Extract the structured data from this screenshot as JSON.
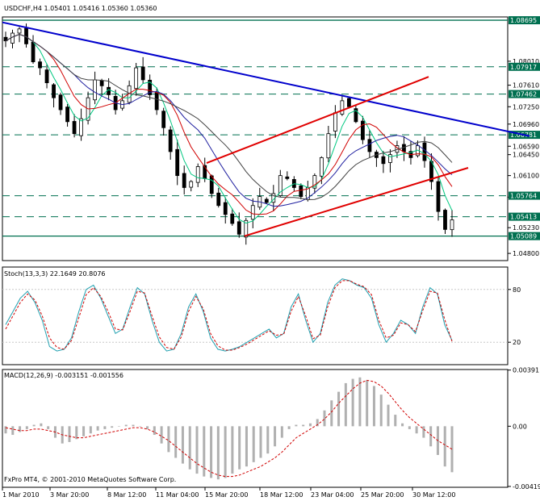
{
  "colors": {
    "background": "#ffffff",
    "frame": "#000000",
    "grid": "#c8c8c8",
    "candle": "#000000",
    "hline": "#007050",
    "trend_blue": "#0000cc",
    "channel_red": "#e00000",
    "ma_fast": "#00c880",
    "ma_mid": "#d00000",
    "ma_slow": "#2020a0",
    "ma_long": "#404040",
    "stoch_main": "#20a0b0",
    "stoch_signal": "#d00000",
    "macd_hist": "#b0b0b0",
    "macd_signal": "#d00000",
    "price_tag": "#007050"
  },
  "header": {
    "symbol_line": "USDCHF,H4  1.05401 1.05416 1.05360 1.05360"
  },
  "copyright": "FxPro MT4, © 2001-2010 MetaQuotes Software Corp.",
  "chart_data": [
    {
      "type": "candlestick",
      "title": "USDCHF,H4",
      "ohlc_last": {
        "open": 1.05401,
        "high": 1.05416,
        "low": 1.0536,
        "close": 1.0536
      },
      "ylim": [
        1.0468,
        1.0875
      ],
      "y_ticks": [
        1.0801,
        1.0761,
        1.0725,
        1.0696,
        1.0659,
        1.0645,
        1.061,
        1.0574,
        1.0523,
        1.048
      ],
      "y_tick_labels": [
        "1.08010",
        "1.07610",
        "1.07250",
        "1.06960",
        "1.06590",
        "1.06450",
        "1.06100",
        "1.05740",
        "1.05230",
        "1.04800"
      ],
      "x_tick_labels": [
        "1 Mar 2010",
        "3 Mar 20:00",
        "8 Mar 12:00",
        "11 Mar 04:00",
        "15 Mar 20:00",
        "18 Mar 12:00",
        "23 Mar 04:00",
        "25 Mar 20:00",
        "30 Mar 12:00"
      ],
      "horizontal_levels": [
        1.08695,
        1.07917,
        1.07462,
        1.06781,
        1.05764,
        1.05413,
        1.05089
      ],
      "horizontal_level_labels": [
        "1.08695",
        "1.07917",
        "1.07462",
        "1.06781",
        "1.05764",
        "1.05413",
        "1.05089"
      ],
      "current_price_label": "1.05413",
      "trendlines": [
        {
          "name": "resistance",
          "start_price": 1.0866,
          "end_price": 1.0676
        },
        {
          "name": "channel-upper",
          "start_price": 1.0631,
          "end_price": 1.0775
        },
        {
          "name": "channel-lower",
          "start_price": 1.0509,
          "end_price": 1.0623
        }
      ],
      "close_path": [
        1.0835,
        1.0848,
        1.0855,
        1.083,
        1.08,
        1.079,
        1.0765,
        1.074,
        1.072,
        1.07,
        1.068,
        1.0705,
        1.074,
        1.077,
        1.076,
        1.0745,
        1.072,
        1.0735,
        1.076,
        1.079,
        1.077,
        1.0745,
        1.072,
        1.069,
        1.065,
        1.061,
        1.059,
        1.06,
        1.0625,
        1.0605,
        1.058,
        1.056,
        1.0545,
        1.053,
        1.0512,
        1.0535,
        1.056,
        1.0575,
        1.0565,
        1.058,
        1.061,
        1.0605,
        1.059,
        1.0575,
        1.059,
        1.061,
        1.064,
        1.068,
        1.0715,
        1.0735,
        1.0725,
        1.07,
        1.067,
        1.065,
        1.064,
        1.063,
        1.0645,
        1.066,
        1.065,
        1.064,
        1.066,
        1.0635,
        1.06,
        1.055,
        1.052,
        1.0536
      ]
    },
    {
      "type": "line",
      "title": "Stoch(13,3,3) 22.1649 20.8076",
      "ylim": [
        0,
        100
      ],
      "y_ticks": [
        80,
        20
      ],
      "y_tick_labels": [
        "80",
        "20"
      ],
      "series": [
        {
          "name": "Stoch(13,3,3)",
          "values": [
            40,
            55,
            70,
            78,
            65,
            45,
            15,
            10,
            12,
            25,
            55,
            80,
            85,
            70,
            50,
            30,
            35,
            60,
            82,
            75,
            45,
            20,
            10,
            12,
            30,
            60,
            75,
            55,
            25,
            12,
            10,
            12,
            15,
            20,
            25,
            30,
            35,
            25,
            30,
            60,
            75,
            45,
            20,
            30,
            65,
            85,
            92,
            90,
            85,
            82,
            70,
            40,
            20,
            30,
            45,
            40,
            30,
            60,
            82,
            75,
            40,
            22
          ]
        },
        {
          "name": "Signal",
          "values": [
            35,
            50,
            65,
            75,
            68,
            50,
            25,
            14,
            12,
            22,
            48,
            74,
            82,
            72,
            55,
            35,
            34,
            55,
            78,
            76,
            50,
            26,
            14,
            12,
            26,
            55,
            72,
            58,
            30,
            16,
            11,
            11,
            14,
            18,
            23,
            28,
            33,
            28,
            29,
            55,
            72,
            50,
            24,
            28,
            60,
            82,
            90,
            90,
            86,
            83,
            74,
            45,
            25,
            28,
            42,
            40,
            32,
            56,
            78,
            76,
            46,
            21
          ]
        }
      ]
    },
    {
      "type": "bar",
      "title": "MACD(12,26,9) -0.003151 -0.001556",
      "ylim": [
        -0.00425,
        0.00395
      ],
      "y_ticks": [
        0.00391,
        0.0,
        -0.00419
      ],
      "y_tick_labels": [
        "0.00391",
        "0.00",
        "-0.00419"
      ],
      "series": [
        {
          "name": "MACD(12,26,9)",
          "values": [
            -0.0005,
            -0.0006,
            -0.0004,
            -0.0002,
            0.0001,
            0.0002,
            -0.0002,
            -0.0008,
            -0.0012,
            -0.0011,
            -0.0009,
            -0.0007,
            -0.0005,
            -0.0003,
            -0.0002,
            -0.0001,
            0.0,
            0.0001,
            0.0001,
            0.0,
            -0.0002,
            -0.0006,
            -0.0012,
            -0.0018,
            -0.0022,
            -0.0026,
            -0.003,
            -0.0033,
            -0.0035,
            -0.0036,
            -0.0037,
            -0.0036,
            -0.0033,
            -0.003,
            -0.0028,
            -0.0025,
            -0.0022,
            -0.0019,
            -0.0014,
            -0.0008,
            -0.0002,
            0.0001,
            0.0001,
            0.0002,
            0.0005,
            0.0011,
            0.0018,
            0.0024,
            0.003,
            0.0033,
            0.0034,
            0.0032,
            0.0028,
            0.0022,
            0.0015,
            0.0008,
            0.0002,
            -0.0002,
            -0.0005,
            -0.0008,
            -0.0014,
            -0.002,
            -0.0028,
            -0.0032
          ]
        },
        {
          "name": "Signal",
          "values": [
            -0.0001,
            -0.0002,
            -0.0003,
            -0.0003,
            -0.0002,
            -0.0002,
            -0.0003,
            -0.0004,
            -0.0006,
            -0.0007,
            -0.0008,
            -0.0008,
            -0.0007,
            -0.0006,
            -0.0005,
            -0.0004,
            -0.0003,
            -0.0002,
            -0.0001,
            -0.0001,
            -0.0002,
            -0.0004,
            -0.0007,
            -0.001,
            -0.0014,
            -0.0018,
            -0.0022,
            -0.0026,
            -0.0029,
            -0.0032,
            -0.0034,
            -0.0035,
            -0.0035,
            -0.0034,
            -0.0032,
            -0.003,
            -0.0028,
            -0.0025,
            -0.0022,
            -0.0018,
            -0.0013,
            -0.0008,
            -0.0005,
            -0.0002,
            0.0001,
            0.0005,
            0.001,
            0.0016,
            0.0021,
            0.0026,
            0.003,
            0.0032,
            0.0031,
            0.0028,
            0.0023,
            0.0017,
            0.0011,
            0.0006,
            0.0002,
            -0.0002,
            -0.0006,
            -0.001,
            -0.0013,
            -0.0016
          ]
        }
      ]
    }
  ]
}
